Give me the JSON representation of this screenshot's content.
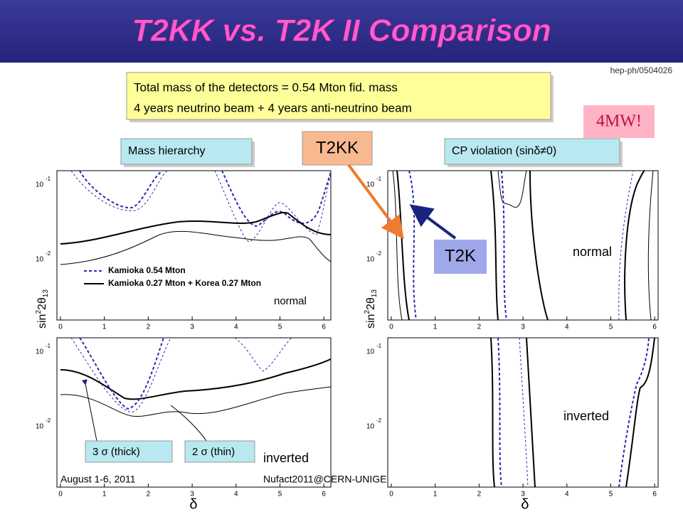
{
  "header": {
    "title": "T2KK vs. T2K II Comparison",
    "reference": "hep-ph/0504026"
  },
  "summary": {
    "line1": "Total mass of the detectors =  0.54 Mton fid. mass",
    "line2": "4 years neutrino beam + 4 years anti-neutrino beam"
  },
  "power": "4MW!",
  "labels": {
    "mass_hierarchy": "Mass hierarchy",
    "t2kk": "T2KK",
    "cp_violation": "CP violation (sinδ≠0)",
    "t2k": "T2K"
  },
  "axis": {
    "x_ticks": [
      0,
      1,
      2,
      3,
      4,
      5,
      6
    ],
    "y_tick_base": "10",
    "y_tick_exponents": [
      "-1",
      "-2"
    ],
    "x_label": "δ",
    "y_label": {
      "base": "sin",
      "sup": "2",
      "mid": "2θ",
      "sub": "13"
    }
  },
  "legend": {
    "dashed": "Kamioka 0.54 Mton",
    "solid": "Kamioka 0.27 Mton + Korea 0.27 Mton"
  },
  "panels": {
    "top_left": "normal",
    "bottom_left": "inverted",
    "top_right": "normal",
    "bottom_right": "inverted"
  },
  "sigma": {
    "thick": "3 σ (thick)",
    "thin": "2 σ (thin)"
  },
  "footer": {
    "date": "August 1-6, 2011",
    "event": "Nufact2011@CERN-UNIGE"
  }
}
